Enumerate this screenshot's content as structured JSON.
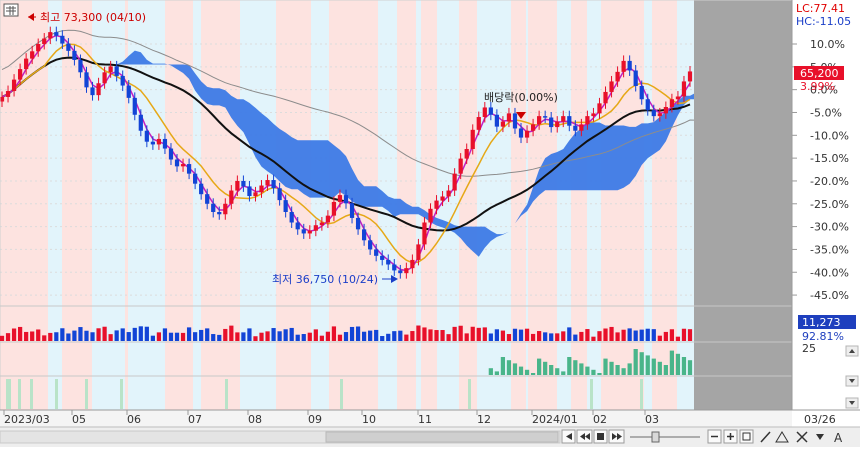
{
  "chart_data": {
    "type": "candlestick",
    "y_axis_unit": "%",
    "y_ticks": [
      "10.0%",
      "5.0%",
      "0.0%",
      "-5.0%",
      "-10.0%",
      "-15.0%",
      "-20.0%",
      "-25.0%",
      "-30.0%",
      "-35.0%",
      "-40.0%",
      "-45.0%"
    ],
    "ylim": [
      -47,
      15
    ],
    "x_labels": [
      "2023/03",
      "05",
      "06",
      "07",
      "08",
      "09",
      "10",
      "11",
      "12",
      "2024/01",
      "02",
      "03"
    ],
    "right_date": "03/26",
    "info": {
      "lc": "LC:77.41",
      "hc": "HC:-11.05"
    },
    "current_price": {
      "label": "65,200",
      "value": 65200,
      "pct": "3.99%"
    },
    "annotations": {
      "high": "최고 73,300 (04/10)",
      "low": "최저 36,750 (10/24)",
      "dividend": "배당락(0.00%)"
    },
    "volume": {
      "value": "11,273",
      "pct": "92.81%"
    },
    "indicator": {
      "level": "25"
    },
    "overlays": [
      "price-ma-short",
      "price-ma-mid",
      "price-ma-long",
      "ichimoku-cloud"
    ],
    "colors": {
      "up": "#e8102a",
      "down": "#1244d6",
      "ma_short": "#c21fc2",
      "ma_mid": "#e6a817",
      "ma_long": "#111111",
      "cloud": "#3d7ae6",
      "gray_line": "#8c8c8c",
      "band_red": "#fde3e0",
      "band_blue": "#e2f4fb",
      "indicator_bar": "#49b58a"
    },
    "series_close_pct": [
      -1.6,
      -0.3,
      2.2,
      4.5,
      6.8,
      8.4,
      10.0,
      11.2,
      12.6,
      11.8,
      10.1,
      8.5,
      6.5,
      3.8,
      0.5,
      -1.2,
      1.4,
      3.8,
      5.1,
      3.0,
      0.9,
      -1.8,
      -5.5,
      -9.0,
      -11.4,
      -12.0,
      -10.8,
      -12.9,
      -15.3,
      -16.8,
      -16.3,
      -18.4,
      -20.6,
      -22.9,
      -25.0,
      -26.8,
      -27.3,
      -25.0,
      -22.1,
      -20.0,
      -21.2,
      -23.3,
      -22.5,
      -21.0,
      -19.8,
      -21.6,
      -24.2,
      -26.8,
      -29.1,
      -30.6,
      -31.5,
      -30.9,
      -29.7,
      -29.1,
      -27.6,
      -24.6,
      -23.1,
      -24.9,
      -28.1,
      -30.6,
      -33.0,
      -35.0,
      -36.4,
      -37.3,
      -38.3,
      -39.6,
      -40.2,
      -39.1,
      -37.3,
      -33.9,
      -29.1,
      -26.1,
      -24.3,
      -23.4,
      -22.1,
      -18.4,
      -15.1,
      -13.0,
      -8.8,
      -6.0,
      -3.9,
      -5.5,
      -8.1,
      -7.0,
      -5.2,
      -8.5,
      -10.5,
      -9.0,
      -7.6,
      -5.8,
      -6.1,
      -8.2,
      -7.0,
      -5.8,
      -7.9,
      -9.0,
      -7.6,
      -5.8,
      -5.2,
      -3.0,
      -0.5,
      1.8,
      3.9,
      6.3,
      4.2,
      0.8,
      -2.1,
      -4.5,
      -5.8,
      -5.2,
      -3.8,
      -2.1,
      -1.5,
      1.8,
      3.99
    ]
  }
}
